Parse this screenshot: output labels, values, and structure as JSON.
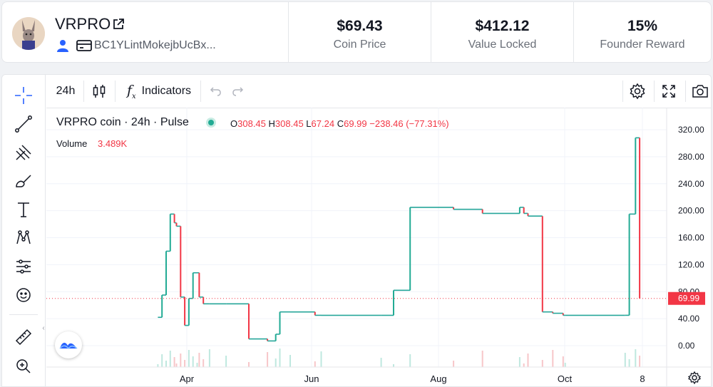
{
  "header": {
    "coin_name": "VRPRO",
    "wallet_address": "BC1YLintMokejbUcBx...",
    "stats": [
      {
        "value": "$69.43",
        "label": "Coin Price"
      },
      {
        "value": "$412.12",
        "label": "Value Locked"
      },
      {
        "value": "15%",
        "label": "Founder Reward"
      }
    ]
  },
  "toolbar": {
    "interval": "24h",
    "indicators_label": "Indicators"
  },
  "legend": {
    "symbol": "VRPRO coin · 24h · Pulse",
    "o_label": "O",
    "o": "308.45",
    "h_label": "H",
    "h": "308.45",
    "l_label": "L",
    "l": "67.24",
    "c_label": "C",
    "c": "69.99",
    "change": "−238.46 (−77.31%)",
    "volume_label": "Volume",
    "volume_value": "3.489K"
  },
  "colors": {
    "up": "#22ab94",
    "down": "#f23645",
    "accent": "#2962ff"
  },
  "chart_data": {
    "type": "line",
    "title": "VRPRO coin · 24h · Pulse",
    "xlabel": "",
    "ylabel": "",
    "x_ticks": [
      "Apr",
      "Jun",
      "Aug",
      "Oct",
      "8"
    ],
    "y_ticks": [
      "0.00",
      "40.00",
      "80.00",
      "120.00",
      "160.00",
      "200.00",
      "240.00",
      "280.00",
      "320.00"
    ],
    "ylim": [
      -10,
      330
    ],
    "last_price_label": "69.99",
    "last_price": 69.99,
    "series": [
      {
        "x": [
          "Mar 18",
          "Mar 20",
          "Mar 22",
          "Mar 24",
          "Mar 26",
          "Mar 27",
          "Mar 29",
          "Mar 31",
          "Apr 2",
          "Apr 4",
          "Apr 6",
          "Apr 7",
          "Apr 9",
          "Apr 12",
          "Apr 20",
          "May 1",
          "May 10",
          "May 14",
          "May 16",
          "May 21",
          "Jun 2",
          "Jun 5",
          "Jul 4",
          "Jul 10",
          "Jul 18",
          "Aug 8",
          "Aug 22",
          "Sep 9",
          "Sep 11",
          "Sep 13",
          "Sep 20",
          "Sep 25",
          "Sep 30",
          "Oct 1",
          "Oct 30",
          "Nov 1",
          "Nov 4",
          "Nov 6"
        ],
        "y": [
          42,
          75,
          140,
          195,
          182,
          177,
          72,
          30,
          70,
          108,
          108,
          72,
          62,
          62,
          62,
          10,
          7,
          17,
          50,
          50,
          45,
          45,
          45,
          82,
          205,
          202,
          196,
          205,
          196,
          192,
          50,
          48,
          45,
          45,
          45,
          195,
          308,
          70
        ]
      }
    ],
    "volume_bars": true
  }
}
